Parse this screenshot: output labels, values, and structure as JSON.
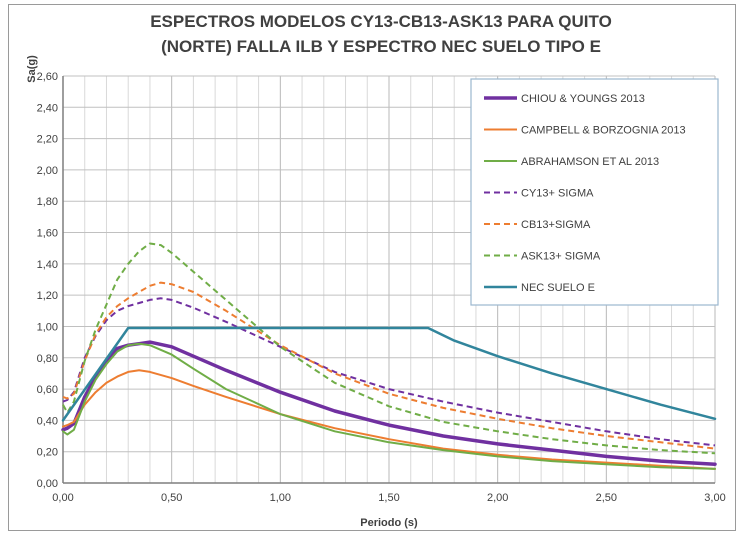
{
  "chart_data": {
    "type": "line",
    "title_lines": [
      "ESPECTROS MODELOS CY13-CB13-ASK13  PARA QUITO",
      "(NORTE) FALLA ILB Y ESPECTRO NEC SUELO TIPO E"
    ],
    "xlabel": "Periodo (s)",
    "ylabel": "Sa(g)",
    "xlim": [
      0,
      3
    ],
    "ylim": [
      0,
      2.6
    ],
    "xticks": [
      0,
      0.5,
      1,
      1.5,
      2,
      2.5,
      3
    ],
    "xtick_labels": [
      "0,00",
      "0,50",
      "1,00",
      "1,50",
      "2,00",
      "2,50",
      "3,00"
    ],
    "yticks": [
      0,
      0.2,
      0.4,
      0.6,
      0.8,
      1.0,
      1.2,
      1.4,
      1.6,
      1.8,
      2.0,
      2.2,
      2.4,
      2.6
    ],
    "ytick_labels": [
      "0,00",
      "0,20",
      "0,40",
      "0,60",
      "0,80",
      "1,00",
      "1,20",
      "1,40",
      "1,60",
      "1,80",
      "2,00",
      "2,20",
      "2,40",
      "2,60"
    ],
    "grid": true,
    "legend_position": "top-right",
    "series": [
      {
        "name": "CHIOU & YOUNGS 2013",
        "color": "#7030a0",
        "dash": "solid",
        "width": 3.5,
        "x": [
          0,
          0.02,
          0.05,
          0.1,
          0.15,
          0.2,
          0.25,
          0.3,
          0.35,
          0.4,
          0.5,
          0.6,
          0.75,
          1.0,
          1.25,
          1.5,
          1.75,
          2.0,
          2.25,
          2.5,
          2.75,
          3.0
        ],
        "y": [
          0.34,
          0.35,
          0.38,
          0.55,
          0.68,
          0.78,
          0.86,
          0.88,
          0.89,
          0.9,
          0.87,
          0.81,
          0.72,
          0.58,
          0.46,
          0.37,
          0.3,
          0.25,
          0.21,
          0.17,
          0.14,
          0.12
        ]
      },
      {
        "name": "CAMPBELL & BORZOGNIA 2013",
        "color": "#ed7d31",
        "dash": "solid",
        "width": 2,
        "x": [
          0,
          0.02,
          0.05,
          0.1,
          0.15,
          0.2,
          0.25,
          0.3,
          0.35,
          0.4,
          0.5,
          0.6,
          0.75,
          1.0,
          1.25,
          1.5,
          1.75,
          2.0,
          2.25,
          2.5,
          2.75,
          3.0
        ],
        "y": [
          0.36,
          0.37,
          0.39,
          0.5,
          0.58,
          0.64,
          0.68,
          0.71,
          0.72,
          0.71,
          0.67,
          0.62,
          0.55,
          0.44,
          0.35,
          0.28,
          0.22,
          0.18,
          0.15,
          0.13,
          0.11,
          0.09
        ]
      },
      {
        "name": "ABRAHAMSON ET AL 2013",
        "color": "#70ad47",
        "dash": "solid",
        "width": 2,
        "x": [
          0,
          0.02,
          0.05,
          0.1,
          0.15,
          0.2,
          0.25,
          0.3,
          0.35,
          0.4,
          0.5,
          0.6,
          0.75,
          1.0,
          1.25,
          1.5,
          1.75,
          2.0,
          2.25,
          2.5,
          2.75,
          3.0
        ],
        "y": [
          0.33,
          0.31,
          0.34,
          0.52,
          0.66,
          0.76,
          0.84,
          0.88,
          0.89,
          0.88,
          0.82,
          0.73,
          0.6,
          0.44,
          0.33,
          0.26,
          0.21,
          0.17,
          0.14,
          0.12,
          0.1,
          0.09
        ]
      },
      {
        "name": "CY13+ SIGMA",
        "color": "#7030a0",
        "dash": "dashed",
        "width": 2,
        "x": [
          0,
          0.02,
          0.05,
          0.1,
          0.15,
          0.2,
          0.25,
          0.3,
          0.35,
          0.4,
          0.45,
          0.5,
          0.6,
          0.75,
          1.0,
          1.25,
          1.5,
          1.75,
          2.0,
          2.25,
          2.5,
          2.75,
          3.0
        ],
        "y": [
          0.52,
          0.53,
          0.58,
          0.8,
          0.94,
          1.04,
          1.1,
          1.13,
          1.15,
          1.17,
          1.18,
          1.17,
          1.12,
          1.03,
          0.87,
          0.71,
          0.6,
          0.52,
          0.45,
          0.39,
          0.33,
          0.28,
          0.24
        ]
      },
      {
        "name": "CB13+SIGMA",
        "color": "#ed7d31",
        "dash": "dashed",
        "width": 2,
        "x": [
          0,
          0.02,
          0.05,
          0.1,
          0.15,
          0.2,
          0.25,
          0.3,
          0.35,
          0.4,
          0.45,
          0.5,
          0.6,
          0.75,
          1.0,
          1.25,
          1.5,
          1.75,
          2.0,
          2.25,
          2.5,
          2.75,
          3.0
        ],
        "y": [
          0.55,
          0.54,
          0.57,
          0.78,
          0.95,
          1.06,
          1.13,
          1.18,
          1.22,
          1.26,
          1.28,
          1.27,
          1.22,
          1.1,
          0.88,
          0.7,
          0.57,
          0.48,
          0.41,
          0.35,
          0.3,
          0.26,
          0.22
        ]
      },
      {
        "name": "ASK13+ SIGMA",
        "color": "#70ad47",
        "dash": "dashed",
        "width": 2,
        "x": [
          0,
          0.02,
          0.05,
          0.1,
          0.15,
          0.2,
          0.25,
          0.3,
          0.35,
          0.4,
          0.45,
          0.5,
          0.6,
          0.75,
          1.0,
          1.25,
          1.5,
          1.75,
          2.0,
          2.25,
          2.5,
          2.75,
          3.0
        ],
        "y": [
          0.5,
          0.45,
          0.52,
          0.78,
          0.98,
          1.14,
          1.3,
          1.4,
          1.48,
          1.53,
          1.52,
          1.47,
          1.35,
          1.17,
          0.87,
          0.64,
          0.49,
          0.39,
          0.33,
          0.28,
          0.24,
          0.21,
          0.19
        ]
      },
      {
        "name": "NEC SUELO E",
        "color": "#31859c",
        "dash": "solid",
        "width": 2.5,
        "x": [
          0,
          0.3,
          0.5,
          1.0,
          1.5,
          1.68,
          1.8,
          2.0,
          2.25,
          2.5,
          2.75,
          3.0
        ],
        "y": [
          0.4,
          0.99,
          0.99,
          0.99,
          0.99,
          0.99,
          0.91,
          0.81,
          0.7,
          0.6,
          0.5,
          0.41
        ]
      }
    ]
  }
}
